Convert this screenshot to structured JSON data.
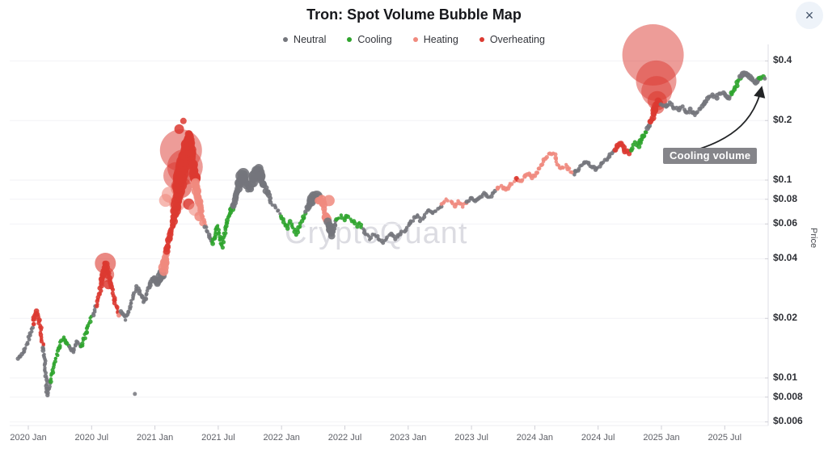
{
  "header": {
    "title": "Tron: Spot Volume Bubble Map"
  },
  "close_button": {
    "glyph": "×"
  },
  "watermark": {
    "text": "CryptoQuant"
  },
  "annotation": {
    "label": "Cooling volume"
  },
  "legend": [
    {
      "label": "Neutral",
      "state": "n",
      "color": "#74767c"
    },
    {
      "label": "Cooling",
      "state": "c",
      "color": "#2fa42d"
    },
    {
      "label": "Heating",
      "state": "h",
      "color": "#f08a7e"
    },
    {
      "label": "Overheating",
      "state": "o",
      "color": "#dc3a31"
    }
  ],
  "axes": {
    "y_title": "Price",
    "y_scale": "log",
    "y_ticks": [
      {
        "label": "$0.4",
        "value": 0.4
      },
      {
        "label": "$0.2",
        "value": 0.2
      },
      {
        "label": "$0.1",
        "value": 0.1
      },
      {
        "label": "$0.08",
        "value": 0.08
      },
      {
        "label": "$0.06",
        "value": 0.06
      },
      {
        "label": "$0.04",
        "value": 0.04
      },
      {
        "label": "$0.02",
        "value": 0.02
      },
      {
        "label": "$0.01",
        "value": 0.01
      },
      {
        "label": "$0.008",
        "value": 0.008
      },
      {
        "label": "$0.006",
        "value": 0.006
      }
    ],
    "x_ticks": [
      {
        "label": "2020 Jan",
        "m": 0
      },
      {
        "label": "2020 Jul",
        "m": 6
      },
      {
        "label": "2021 Jan",
        "m": 12
      },
      {
        "label": "2021 Jul",
        "m": 18
      },
      {
        "label": "2022 Jan",
        "m": 24
      },
      {
        "label": "2022 Jul",
        "m": 30
      },
      {
        "label": "2023 Jan",
        "m": 36
      },
      {
        "label": "2023 Jul",
        "m": 42
      },
      {
        "label": "2024 Jan",
        "m": 48
      },
      {
        "label": "2024 Jul",
        "m": 54
      },
      {
        "label": "2025 Jan",
        "m": 60
      },
      {
        "label": "2025 Jul",
        "m": 66
      }
    ]
  },
  "chart_data": {
    "type": "scatter",
    "title": "Tron: Spot Volume Bubble Map",
    "x_unit": "months_since_2020-01",
    "ylabel": "Price",
    "y_scale": "log",
    "ylim": [
      0.005,
      0.5
    ],
    "states": {
      "n": "Neutral",
      "c": "Cooling",
      "h": "Heating",
      "o": "Overheating"
    },
    "point_format": [
      "months_since_2020_01",
      "price_usd",
      "state",
      "bubble_radius_px"
    ],
    "points": [
      [
        -1.0,
        0.0125,
        "n",
        2.5
      ],
      [
        -0.6,
        0.0131,
        "n",
        2.5
      ],
      [
        -0.2,
        0.0142,
        "n",
        2.5
      ],
      [
        0.15,
        0.0163,
        "n",
        2.5
      ],
      [
        0.45,
        0.0185,
        "o",
        2.5
      ],
      [
        0.69,
        0.0218,
        "o",
        3
      ],
      [
        1.0,
        0.0199,
        "o",
        3
      ],
      [
        1.2,
        0.017,
        "o",
        2.5
      ],
      [
        1.45,
        0.0143,
        "n",
        2.5
      ],
      [
        1.6,
        0.0113,
        "n",
        2.5
      ],
      [
        1.78,
        0.0083,
        "n",
        2.5
      ],
      [
        2.1,
        0.0097,
        "c",
        2.5
      ],
      [
        2.4,
        0.0113,
        "c",
        2.5
      ],
      [
        2.7,
        0.013,
        "c",
        2.5
      ],
      [
        3.05,
        0.015,
        "c",
        2.5
      ],
      [
        3.45,
        0.016,
        "c",
        2.5
      ],
      [
        3.85,
        0.0143,
        "n",
        2.5
      ],
      [
        4.2,
        0.0136,
        "n",
        2.5
      ],
      [
        4.6,
        0.0155,
        "n",
        2.5
      ],
      [
        5.0,
        0.0143,
        "c",
        2.5
      ],
      [
        5.4,
        0.0164,
        "c",
        2.5
      ],
      [
        5.75,
        0.0189,
        "c",
        2.5
      ],
      [
        6.1,
        0.0208,
        "n",
        2.5
      ],
      [
        6.5,
        0.0233,
        "o",
        2.5
      ],
      [
        6.9,
        0.029,
        "o",
        3
      ],
      [
        7.3,
        0.038,
        "o",
        4
      ],
      [
        7.55,
        0.0333,
        "o",
        3.5
      ],
      [
        7.78,
        0.0297,
        "o",
        3
      ],
      [
        8.05,
        0.0263,
        "o",
        2.5
      ],
      [
        8.3,
        0.0233,
        "o",
        2.5
      ],
      [
        8.6,
        0.0208,
        "h",
        2.5
      ],
      [
        8.85,
        0.0218,
        "n",
        2.5
      ],
      [
        9.2,
        0.0199,
        "n",
        2.5
      ],
      [
        9.6,
        0.0225,
        "n",
        2.5
      ],
      [
        10.0,
        0.0263,
        "n",
        2.5
      ],
      [
        10.3,
        0.0288,
        "n",
        2.5
      ],
      [
        10.65,
        0.0263,
        "n",
        2.5
      ],
      [
        11.0,
        0.0243,
        "n",
        2.5
      ],
      [
        11.3,
        0.0276,
        "n",
        2.5
      ],
      [
        11.6,
        0.0308,
        "n",
        3
      ],
      [
        11.9,
        0.0318,
        "n",
        4
      ],
      [
        12.2,
        0.0297,
        "n",
        4
      ],
      [
        12.5,
        0.0318,
        "n",
        5
      ],
      [
        12.8,
        0.035,
        "h",
        6
      ],
      [
        13.1,
        0.0441,
        "o",
        4
      ],
      [
        13.35,
        0.0504,
        "o",
        4
      ],
      [
        13.6,
        0.057,
        "o",
        4
      ],
      [
        13.85,
        0.066,
        "o",
        5
      ],
      [
        14.1,
        0.0776,
        "o",
        6
      ],
      [
        14.35,
        0.0981,
        "o",
        8
      ],
      [
        14.6,
        0.1185,
        "o",
        9
      ],
      [
        14.85,
        0.1364,
        "o",
        8
      ],
      [
        15.1,
        0.1573,
        "o",
        6
      ],
      [
        15.3,
        0.1727,
        "o",
        4
      ],
      [
        15.55,
        0.13,
        "o",
        5
      ],
      [
        15.8,
        0.0981,
        "h",
        6
      ],
      [
        16.05,
        0.0851,
        "h",
        5
      ],
      [
        16.3,
        0.074,
        "h",
        4
      ],
      [
        16.55,
        0.0643,
        "h",
        3
      ],
      [
        16.8,
        0.0585,
        "n",
        2.5
      ],
      [
        17.1,
        0.0533,
        "n",
        2.5
      ],
      [
        17.4,
        0.048,
        "c",
        2.5
      ],
      [
        17.7,
        0.0533,
        "c",
        2.5
      ],
      [
        17.9,
        0.0585,
        "c",
        2.5
      ],
      [
        18.1,
        0.052,
        "c",
        2.5
      ],
      [
        18.35,
        0.0462,
        "c",
        2.5
      ],
      [
        18.6,
        0.0533,
        "c",
        2.5
      ],
      [
        18.85,
        0.0613,
        "c",
        2.5
      ],
      [
        19.1,
        0.0674,
        "c",
        3
      ],
      [
        19.4,
        0.074,
        "n",
        4
      ],
      [
        19.7,
        0.083,
        "n",
        4
      ],
      [
        20.0,
        0.0934,
        "n",
        5
      ],
      [
        20.3,
        0.108,
        "n",
        7
      ],
      [
        20.6,
        0.0981,
        "n",
        5
      ],
      [
        20.9,
        0.0892,
        "n",
        4
      ],
      [
        21.2,
        0.0953,
        "n",
        5
      ],
      [
        21.5,
        0.108,
        "n",
        7
      ],
      [
        21.8,
        0.113,
        "n",
        7
      ],
      [
        22.1,
        0.0981,
        "n",
        5
      ],
      [
        22.4,
        0.0934,
        "n",
        4
      ],
      [
        22.7,
        0.0851,
        "n",
        3.5
      ],
      [
        23.0,
        0.0776,
        "n",
        2.5
      ],
      [
        23.3,
        0.074,
        "n",
        2.5
      ],
      [
        23.6,
        0.0707,
        "n",
        2.5
      ],
      [
        23.9,
        0.066,
        "c",
        2.5
      ],
      [
        24.2,
        0.0613,
        "c",
        2.5
      ],
      [
        24.5,
        0.057,
        "c",
        2.5
      ],
      [
        24.8,
        0.0613,
        "c",
        2.5
      ],
      [
        25.1,
        0.057,
        "c",
        2.5
      ],
      [
        25.4,
        0.053,
        "c",
        2.5
      ],
      [
        25.7,
        0.0585,
        "c",
        2.5
      ],
      [
        26.0,
        0.063,
        "c",
        2.5
      ],
      [
        26.3,
        0.0687,
        "n",
        3
      ],
      [
        26.6,
        0.074,
        "n",
        4.5
      ],
      [
        26.95,
        0.0813,
        "n",
        6
      ],
      [
        27.25,
        0.083,
        "n",
        8
      ],
      [
        27.55,
        0.0794,
        "h",
        5
      ],
      [
        27.85,
        0.0794,
        "h",
        5
      ],
      [
        28.1,
        0.0687,
        "h",
        3
      ],
      [
        28.4,
        0.0613,
        "n",
        6
      ],
      [
        28.7,
        0.0528,
        "n",
        4.5
      ],
      [
        28.95,
        0.057,
        "n",
        3
      ],
      [
        29.25,
        0.063,
        "c",
        2.5
      ],
      [
        29.6,
        0.066,
        "c",
        2.5
      ],
      [
        29.9,
        0.063,
        "c",
        2.5
      ],
      [
        30.2,
        0.066,
        "c",
        2.5
      ],
      [
        30.5,
        0.063,
        "c",
        2.5
      ],
      [
        30.8,
        0.0613,
        "c",
        2.5
      ],
      [
        31.1,
        0.0585,
        "c",
        2.5
      ],
      [
        31.4,
        0.0613,
        "c",
        2.5
      ],
      [
        31.7,
        0.057,
        "n",
        2.5
      ],
      [
        32.0,
        0.0533,
        "n",
        2.5
      ],
      [
        32.4,
        0.0505,
        "n",
        2.5
      ],
      [
        32.8,
        0.0533,
        "n",
        2.5
      ],
      [
        33.2,
        0.0505,
        "n",
        2.5
      ],
      [
        33.6,
        0.0486,
        "n",
        2.5
      ],
      [
        34.0,
        0.052,
        "n",
        2.5
      ],
      [
        34.4,
        0.0533,
        "n",
        2.5
      ],
      [
        34.8,
        0.0505,
        "n",
        2.5
      ],
      [
        35.2,
        0.0533,
        "n",
        2.5
      ],
      [
        35.6,
        0.055,
        "n",
        2.5
      ],
      [
        36.0,
        0.0585,
        "n",
        2.5
      ],
      [
        36.4,
        0.063,
        "n",
        2.5
      ],
      [
        36.8,
        0.066,
        "n",
        2.5
      ],
      [
        37.2,
        0.063,
        "n",
        2.5
      ],
      [
        37.6,
        0.0674,
        "n",
        2.5
      ],
      [
        38.0,
        0.0707,
        "n",
        2.5
      ],
      [
        38.4,
        0.0674,
        "n",
        2.5
      ],
      [
        38.8,
        0.072,
        "n",
        2.5
      ],
      [
        39.2,
        0.0757,
        "h",
        2.5
      ],
      [
        39.6,
        0.0794,
        "h",
        2.5
      ],
      [
        40.0,
        0.0776,
        "h",
        2.5
      ],
      [
        40.4,
        0.074,
        "h",
        2.5
      ],
      [
        40.8,
        0.0776,
        "h",
        2.5
      ],
      [
        41.2,
        0.074,
        "h",
        2.5
      ],
      [
        41.6,
        0.0776,
        "n",
        2.5
      ],
      [
        42.0,
        0.0813,
        "n",
        2.5
      ],
      [
        42.4,
        0.0776,
        "n",
        2.5
      ],
      [
        42.8,
        0.0813,
        "n",
        2.5
      ],
      [
        43.2,
        0.0851,
        "n",
        2.5
      ],
      [
        43.6,
        0.0813,
        "n",
        2.5
      ],
      [
        44.0,
        0.0851,
        "n",
        2.5
      ],
      [
        44.4,
        0.0892,
        "h",
        2.5
      ],
      [
        44.8,
        0.0934,
        "h",
        2.5
      ],
      [
        45.2,
        0.0892,
        "h",
        2.5
      ],
      [
        45.6,
        0.0934,
        "h",
        2.5
      ],
      [
        46.0,
        0.0981,
        "h",
        2.5
      ],
      [
        46.3,
        0.103,
        "o",
        3
      ],
      [
        46.6,
        0.0981,
        "h",
        2.5
      ],
      [
        47.0,
        0.103,
        "h",
        2.5
      ],
      [
        47.4,
        0.108,
        "h",
        2.5
      ],
      [
        47.8,
        0.103,
        "h",
        2.5
      ],
      [
        48.2,
        0.108,
        "h",
        2.5
      ],
      [
        48.6,
        0.1185,
        "h",
        2.5
      ],
      [
        49.0,
        0.13,
        "h",
        2.5
      ],
      [
        49.4,
        0.1364,
        "h",
        2.5
      ],
      [
        49.8,
        0.1364,
        "h",
        2.5
      ],
      [
        50.1,
        0.124,
        "h",
        2.5
      ],
      [
        50.5,
        0.113,
        "h",
        2.5
      ],
      [
        50.9,
        0.1185,
        "h",
        2.5
      ],
      [
        51.3,
        0.113,
        "h",
        2.5
      ],
      [
        51.7,
        0.108,
        "n",
        2.5
      ],
      [
        52.1,
        0.113,
        "n",
        2.5
      ],
      [
        52.5,
        0.1185,
        "n",
        2.5
      ],
      [
        52.9,
        0.124,
        "n",
        2.5
      ],
      [
        53.3,
        0.1185,
        "n",
        2.5
      ],
      [
        53.7,
        0.113,
        "n",
        2.5
      ],
      [
        54.1,
        0.1185,
        "n",
        2.5
      ],
      [
        54.5,
        0.124,
        "n",
        2.5
      ],
      [
        54.9,
        0.13,
        "n",
        2.5
      ],
      [
        55.3,
        0.1364,
        "n",
        2.5
      ],
      [
        55.7,
        0.1429,
        "o",
        3
      ],
      [
        56.0,
        0.154,
        "o",
        3.5
      ],
      [
        56.3,
        0.149,
        "o",
        3.5
      ],
      [
        56.6,
        0.14,
        "o",
        3.5
      ],
      [
        56.9,
        0.1364,
        "o",
        3
      ],
      [
        57.2,
        0.1429,
        "c",
        3
      ],
      [
        57.5,
        0.154,
        "c",
        3
      ],
      [
        57.8,
        0.149,
        "c",
        3
      ],
      [
        58.1,
        0.162,
        "c",
        3
      ],
      [
        58.4,
        0.1727,
        "c",
        3
      ],
      [
        58.65,
        0.181,
        "n",
        3
      ],
      [
        58.9,
        0.195,
        "o",
        3.5
      ],
      [
        59.15,
        0.208,
        "o",
        4
      ],
      [
        59.45,
        0.233,
        "o",
        4.5
      ],
      [
        59.7,
        0.25,
        "o",
        4.5
      ],
      [
        60.0,
        0.239,
        "n",
        3
      ],
      [
        60.4,
        0.233,
        "n",
        2.8
      ],
      [
        60.8,
        0.245,
        "n",
        2.8
      ],
      [
        61.2,
        0.233,
        "n",
        2.8
      ],
      [
        61.6,
        0.226,
        "n",
        2.8
      ],
      [
        62.0,
        0.233,
        "n",
        2.8
      ],
      [
        62.4,
        0.22,
        "n",
        2.8
      ],
      [
        62.8,
        0.226,
        "n",
        2.8
      ],
      [
        63.2,
        0.214,
        "n",
        2.8
      ],
      [
        63.6,
        0.226,
        "n",
        2.8
      ],
      [
        64.0,
        0.239,
        "n",
        2.8
      ],
      [
        64.4,
        0.257,
        "n",
        2.8
      ],
      [
        64.8,
        0.27,
        "n",
        2.8
      ],
      [
        65.2,
        0.263,
        "n",
        2.8
      ],
      [
        65.6,
        0.276,
        "n",
        2.8
      ],
      [
        66.0,
        0.27,
        "n",
        2.8
      ],
      [
        66.3,
        0.257,
        "n",
        2.8
      ],
      [
        66.6,
        0.27,
        "c",
        2.8
      ],
      [
        66.9,
        0.29,
        "c",
        2.8
      ],
      [
        67.2,
        0.31,
        "c",
        2.8
      ],
      [
        67.5,
        0.333,
        "n",
        3.5
      ],
      [
        67.8,
        0.35,
        "n",
        4
      ],
      [
        68.1,
        0.342,
        "n",
        3.5
      ],
      [
        68.4,
        0.333,
        "n",
        3.5
      ],
      [
        68.7,
        0.318,
        "n",
        3
      ],
      [
        69.0,
        0.31,
        "n",
        3
      ],
      [
        69.3,
        0.326,
        "c",
        3
      ],
      [
        69.6,
        0.333,
        "c",
        3
      ],
      [
        69.8,
        0.326,
        "n",
        2.5
      ]
    ],
    "volume_bubbles_format": [
      "months_since_2020_01",
      "price_usd",
      "radius_px",
      "state"
    ],
    "volume_bubbles": [
      [
        7.3,
        0.038,
        13,
        "o"
      ],
      [
        7.45,
        0.0333,
        9,
        "o"
      ],
      [
        7.6,
        0.0297,
        6,
        "o"
      ],
      [
        14.3,
        0.181,
        6,
        "o"
      ],
      [
        14.7,
        0.199,
        4,
        "o"
      ],
      [
        14.47,
        0.1415,
        26,
        "o"
      ],
      [
        14.85,
        0.1166,
        22,
        "o"
      ],
      [
        14.1,
        0.1053,
        17,
        "o"
      ],
      [
        14.5,
        0.0917,
        13,
        "o"
      ],
      [
        13.4,
        0.0844,
        10,
        "h"
      ],
      [
        14.1,
        0.0762,
        10,
        "h"
      ],
      [
        13.0,
        0.079,
        8,
        "h"
      ],
      [
        15.2,
        0.0756,
        7,
        "o"
      ],
      [
        15.8,
        0.071,
        8,
        "h"
      ],
      [
        16.2,
        0.0655,
        6,
        "h"
      ],
      [
        16.5,
        0.0607,
        4,
        "h"
      ],
      [
        10.1,
        0.0083,
        2.5,
        "n"
      ],
      [
        28.5,
        0.0788,
        7,
        "h"
      ],
      [
        59.2,
        0.429,
        38,
        "o"
      ],
      [
        59.5,
        0.318,
        25,
        "o"
      ],
      [
        59.55,
        0.281,
        19,
        "o"
      ],
      [
        59.6,
        0.252,
        12,
        "o"
      ],
      [
        59.65,
        0.233,
        8,
        "o"
      ]
    ]
  }
}
